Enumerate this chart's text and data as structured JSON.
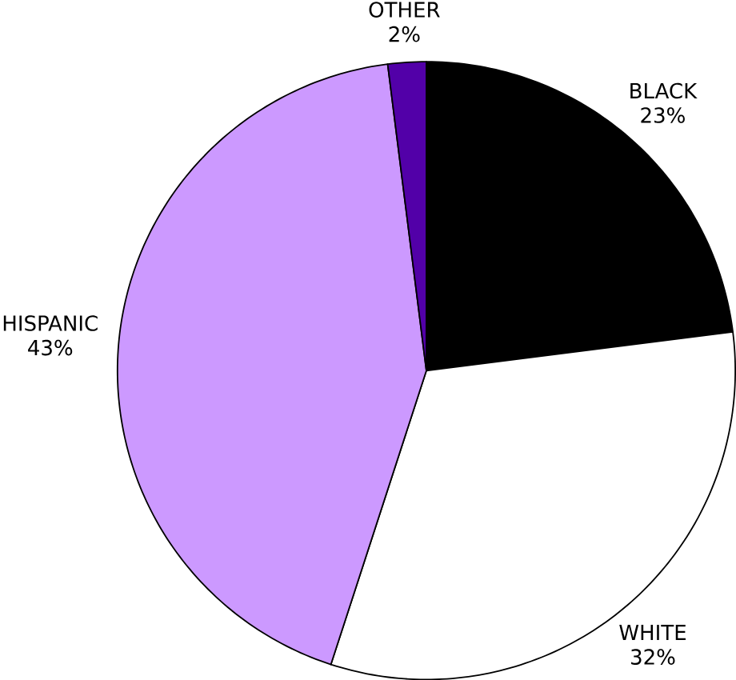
{
  "chart_data": {
    "type": "pie",
    "categories": [
      "BLACK",
      "WHITE",
      "HISPANIC",
      "OTHER"
    ],
    "values": [
      23,
      32,
      43,
      2
    ],
    "value_labels": [
      "23%",
      "32%",
      "43%",
      "2%"
    ],
    "colors": [
      "#000000",
      "#ffffff",
      "#cc99ff",
      "#5200a8"
    ]
  }
}
